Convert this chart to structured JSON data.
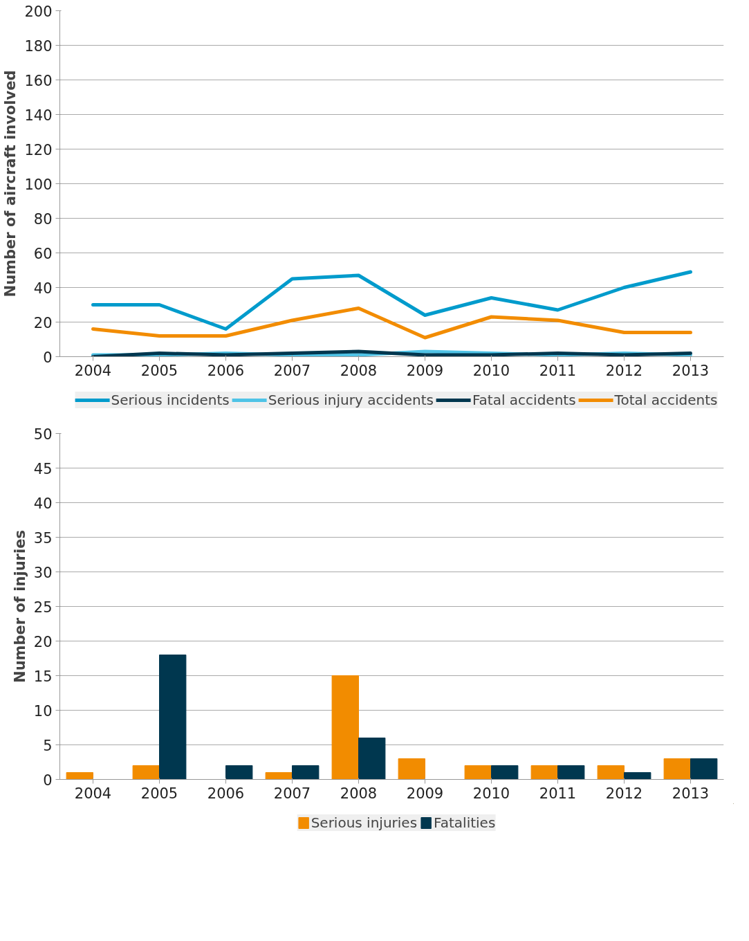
{
  "chart_data": [
    {
      "type": "line",
      "ylabel": "Number of aircraft involved",
      "categories": [
        "2004",
        "2005",
        "2006",
        "2007",
        "2008",
        "2009",
        "2010",
        "2011",
        "2012",
        "2013"
      ],
      "ylim": [
        0,
        200
      ],
      "yticks": [
        0,
        20,
        40,
        60,
        80,
        100,
        120,
        140,
        160,
        180,
        200
      ],
      "grid": "y",
      "legend": "bottom",
      "line_style": "solid",
      "series": [
        {
          "name": "Serious incidents",
          "color": "#009bcc",
          "values": [
            30,
            30,
            16,
            45,
            47,
            24,
            34,
            27,
            40,
            49
          ]
        },
        {
          "name": "Serious injury accidents",
          "color": "#4fc3e6",
          "values": [
            1,
            1,
            2,
            1,
            1,
            3,
            2,
            1,
            2,
            1
          ]
        },
        {
          "name": "Fatal accidents",
          "color": "#00374f",
          "values": [
            0,
            2,
            1,
            2,
            3,
            1,
            1,
            2,
            1,
            2
          ]
        },
        {
          "name": "Total accidents",
          "color": "#f28c00",
          "values": [
            16,
            12,
            12,
            21,
            28,
            11,
            23,
            21,
            14,
            14
          ]
        }
      ]
    },
    {
      "type": "bar",
      "ylabel": "Number of injuries",
      "categories": [
        "2004",
        "2005",
        "2006",
        "2007",
        "2008",
        "2009",
        "2010",
        "2011",
        "2012",
        "2013"
      ],
      "ylim": [
        0,
        50
      ],
      "yticks": [
        0,
        5,
        10,
        15,
        20,
        25,
        30,
        35,
        40,
        45,
        50
      ],
      "grid": "y",
      "legend": "bottom",
      "series": [
        {
          "name": "Serious injuries",
          "color": "#f28c00",
          "values": [
            1,
            2,
            0,
            1,
            15,
            3,
            2,
            2,
            2,
            3
          ]
        },
        {
          "name": "Fatalities",
          "color": "#00374f",
          "values": [
            0,
            18,
            2,
            2,
            6,
            0,
            2,
            2,
            1,
            3
          ]
        }
      ]
    }
  ]
}
